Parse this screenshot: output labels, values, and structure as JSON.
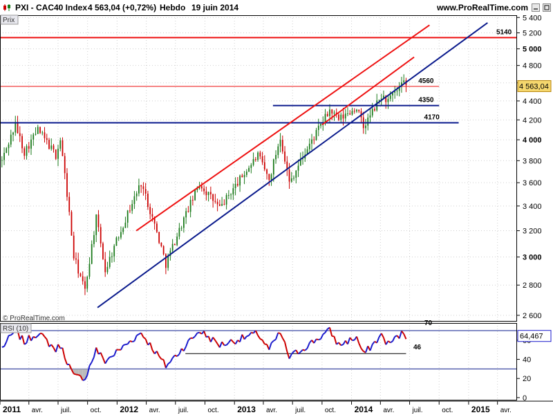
{
  "header": {
    "title": "PXI - CAC40 Index",
    "last": "4 563,04 (+0,72%)",
    "period": "Hebdo",
    "date": "19 juin 2014",
    "site": "www.ProRealTime.com"
  },
  "price_panel": {
    "tag": "Prix",
    "copyright": "© ProRealTime.com",
    "last_label": "4 563,04"
  },
  "rsi_panel": {
    "tag": "RSI (10)",
    "last_label": "64,467"
  },
  "colors": {
    "up": "#1a7a1a",
    "down": "#cc0000",
    "channel": "#ee1111",
    "support": "#0a1a8c",
    "grid": "#cfcfcf",
    "rsi_line": "#1a1acc",
    "last_price_bg": "#f5d76e"
  },
  "chart_data": [
    {
      "type": "candlestick",
      "x_ticks": [
        "2011",
        "avr.",
        "juil.",
        "oct.",
        "2012",
        "avr.",
        "juil.",
        "oct.",
        "2013",
        "avr.",
        "juil.",
        "oct.",
        "2014",
        "avr.",
        "juil.",
        "oct.",
        "2015",
        "avr."
      ],
      "bold_x_ticks": [
        "2011",
        "2012",
        "2013",
        "2014",
        "2015"
      ],
      "y_ticks": [
        "2 600",
        "2 800",
        "3 000",
        "3 200",
        "3 400",
        "3 600",
        "3 800",
        "4 000",
        "4 200",
        "4 400",
        "4 600",
        "4 800",
        "5 000",
        "5 200",
        "5 400"
      ],
      "bold_y_ticks": [
        "3 000",
        "4 000",
        "5 000"
      ],
      "y_scale": "log",
      "ylim": [
        2560,
        5430
      ],
      "last_price": 4563.04,
      "pivots": [
        [
          "2011-01-07",
          3800
        ],
        [
          "2011-02-18",
          4150
        ],
        [
          "2011-03-18",
          3880
        ],
        [
          "2011-04-29",
          4100
        ],
        [
          "2011-06-24",
          3850
        ],
        [
          "2011-07-08",
          4000
        ],
        [
          "2011-08-19",
          3000
        ],
        [
          "2011-09-23",
          2760
        ],
        [
          "2011-10-28",
          3300
        ],
        [
          "2011-11-25",
          2900
        ],
        [
          "2012-03-16",
          3600
        ],
        [
          "2012-06-01",
          2950
        ],
        [
          "2012-09-14",
          3590
        ],
        [
          "2012-11-16",
          3380
        ],
        [
          "2013-03-15",
          3850
        ],
        [
          "2013-04-19",
          3620
        ],
        [
          "2013-05-24",
          4030
        ],
        [
          "2013-06-21",
          3600
        ],
        [
          "2013-10-25",
          4300
        ],
        [
          "2013-11-22",
          4200
        ],
        [
          "2014-01-17",
          4330
        ],
        [
          "2014-02-07",
          4120
        ],
        [
          "2014-04-04",
          4450
        ],
        [
          "2014-04-25",
          4400
        ],
        [
          "2014-06-13",
          4590
        ],
        [
          "2014-06-20",
          4563
        ]
      ],
      "levels": [
        {
          "label": "5140",
          "value": 5140,
          "color": "red",
          "from": "2011-01-01",
          "to": "2015-06-01"
        },
        {
          "label": "4560",
          "value": 4560,
          "color": "red_thin",
          "from": "2011-01-01",
          "to": "2014-10-01"
        },
        {
          "label": "4350",
          "value": 4350,
          "color": "blue",
          "from": "2013-05-01",
          "to": "2014-10-01"
        },
        {
          "label": "4170",
          "value": 4170,
          "color": "blue",
          "from": "2011-01-01",
          "to": "2014-12-01"
        }
      ],
      "trendlines": [
        {
          "color": "red",
          "from": [
            "2012-03-01",
            3200
          ],
          "to": [
            "2014-09-01",
            5300
          ]
        },
        {
          "color": "red",
          "from": [
            "2013-10-01",
            4150
          ],
          "to": [
            "2014-07-15",
            4900
          ]
        },
        {
          "color": "blue",
          "from": [
            "2011-11-01",
            2650
          ],
          "to": [
            "2015-03-01",
            5330
          ]
        }
      ]
    },
    {
      "type": "line",
      "name": "RSI (10)",
      "y_ticks": [
        "0",
        "20",
        "40",
        "60"
      ],
      "ylim": [
        -3,
        78
      ],
      "level_labels": [
        "70",
        "46"
      ],
      "overbought": 70,
      "oversold": 30,
      "support_level": 46,
      "last_value": 64.467,
      "pivots": [
        [
          "2011-01-07",
          52
        ],
        [
          "2011-02-18",
          70
        ],
        [
          "2011-03-18",
          58
        ],
        [
          "2011-04-29",
          68
        ],
        [
          "2011-06-24",
          50
        ],
        [
          "2011-07-08",
          55
        ],
        [
          "2011-08-19",
          22
        ],
        [
          "2011-09-23",
          20
        ],
        [
          "2011-10-28",
          50
        ],
        [
          "2011-11-25",
          38
        ],
        [
          "2012-03-16",
          68
        ],
        [
          "2012-06-01",
          33
        ],
        [
          "2012-09-14",
          70
        ],
        [
          "2012-11-16",
          55
        ],
        [
          "2013-03-15",
          67
        ],
        [
          "2013-04-19",
          50
        ],
        [
          "2013-05-24",
          68
        ],
        [
          "2013-06-21",
          42
        ],
        [
          "2013-10-25",
          70
        ],
        [
          "2013-11-22",
          55
        ],
        [
          "2014-01-17",
          63
        ],
        [
          "2014-02-07",
          45
        ],
        [
          "2014-04-04",
          65
        ],
        [
          "2014-04-25",
          56
        ],
        [
          "2014-06-13",
          68
        ],
        [
          "2014-06-20",
          64.467
        ]
      ]
    }
  ]
}
